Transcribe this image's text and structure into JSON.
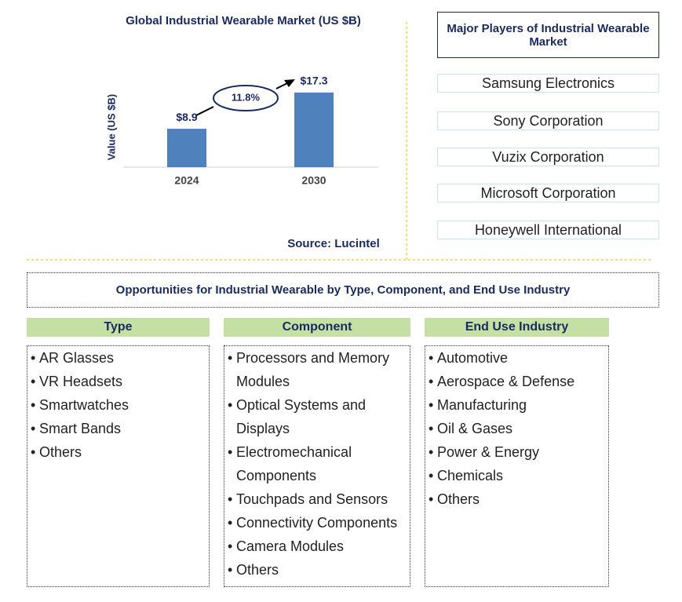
{
  "chart_data": {
    "type": "bar",
    "title": "Global Industrial Wearable Market (US $B)",
    "y_label": "Value (US $B)",
    "categories": [
      "2024",
      "2030"
    ],
    "values": [
      8.9,
      17.3
    ],
    "value_labels": [
      "$8.9",
      "$17.3"
    ],
    "color": "#4f81bd",
    "ylim": [
      0,
      20
    ],
    "annotation": "11.8%",
    "source": "Source: Lucintel"
  },
  "players": {
    "title": "Major Players of Industrial Wearable Market",
    "items": [
      "Samsung Electronics",
      "Sony Corporation",
      "Vuzix Corporation",
      "Microsoft Corporation",
      "Honeywell International"
    ]
  },
  "opportunities": {
    "title": "Opportunities for Industrial Wearable by Type, Component, and End Use Industry",
    "columns": [
      {
        "header": "Type",
        "items": [
          "AR Glasses",
          "VR Headsets",
          "Smartwatches",
          "Smart Bands",
          "Others"
        ]
      },
      {
        "header": "Component",
        "items": [
          "Processors and Memory Modules",
          "Optical Systems and Displays",
          "Electromechanical Components",
          "Touchpads and Sensors",
          "Connectivity Components",
          "Camera Modules",
          "Others"
        ]
      },
      {
        "header": "End Use Industry",
        "items": [
          "Automotive",
          "Aerospace & Defense",
          "Manufacturing",
          "Oil & Gases",
          "Power & Energy",
          "Chemicals",
          "Others"
        ]
      }
    ]
  }
}
